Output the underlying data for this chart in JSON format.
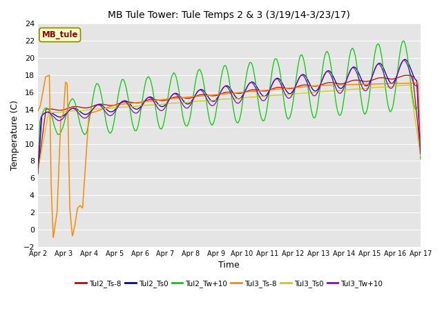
{
  "title": "MB Tule Tower: Tule Temps 2 & 3 (3/19/14-3/23/17)",
  "xlabel": "Time",
  "ylabel": "Temperature (C)",
  "ylim": [
    -2,
    24
  ],
  "xlim": [
    0,
    15
  ],
  "bg_color": "#e5e5e5",
  "annotation": "MB_tule",
  "xtick_labels": [
    "Apr 2",
    "Apr 3",
    "Apr 4",
    "Apr 5",
    "Apr 6",
    "Apr 7",
    "Apr 8",
    "Apr 9",
    "Apr 10",
    "Apr 11",
    "Apr 12",
    "Apr 13",
    "Apr 14",
    "Apr 15",
    "Apr 16",
    "Apr 17"
  ],
  "ytick_values": [
    -2,
    0,
    2,
    4,
    6,
    8,
    10,
    12,
    14,
    16,
    18,
    20,
    22,
    24
  ],
  "legend_labels": [
    "Tul2_Ts-8",
    "Tul2_Ts0",
    "Tul2_Tw+10",
    "Tul3_Ts-8",
    "Tul3_Ts0",
    "Tul3_Tw+10"
  ],
  "legend_colors": [
    "#cc0000",
    "#000099",
    "#00cc00",
    "#ff8800",
    "#cccc00",
    "#8800cc"
  ]
}
